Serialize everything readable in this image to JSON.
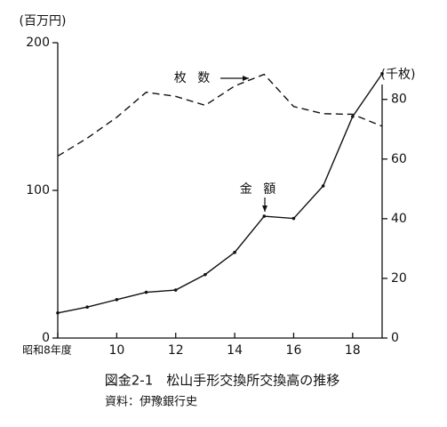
{
  "chart_data": {
    "type": "line",
    "y_label": "(百万円)",
    "y2_label": "(千枚)",
    "title": "図金2-1　松山手形交換所交換高の推移",
    "source": "資料：伊豫銀行史",
    "x": [
      8,
      9,
      10,
      11,
      12,
      13,
      14,
      15,
      16,
      17,
      18,
      19
    ],
    "xlim": [
      8,
      19
    ],
    "xticks": [
      {
        "value": 8,
        "label": "昭和8年度"
      },
      10,
      12,
      14,
      16,
      18
    ],
    "ylim": [
      0,
      200
    ],
    "yticks": [
      0,
      100,
      200
    ],
    "y2lim": [
      0,
      99
    ],
    "y2ticks": [
      0,
      20,
      40,
      60,
      80
    ],
    "series": [
      {
        "name": "金 額",
        "color": "#111111",
        "dash": false,
        "values": [
          17,
          21,
          26,
          31,
          32.5,
          43,
          58,
          82.5,
          81,
          103,
          150,
          179
        ]
      },
      {
        "name": "枚 数",
        "color": "#111111",
        "dash": true,
        "axis": "y2",
        "values": [
          61,
          67,
          74,
          82.4,
          81,
          78,
          84.5,
          88.4,
          77.6,
          75.2,
          75,
          71
        ]
      }
    ]
  }
}
